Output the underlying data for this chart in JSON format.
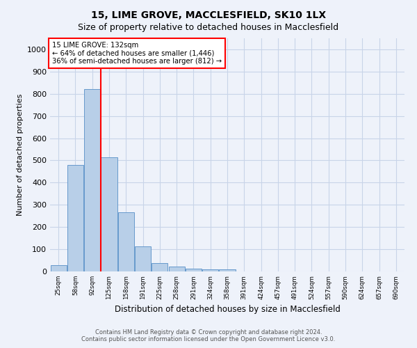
{
  "title1": "15, LIME GROVE, MACCLESFIELD, SK10 1LX",
  "title2": "Size of property relative to detached houses in Macclesfield",
  "xlabel": "Distribution of detached houses by size in Macclesfield",
  "ylabel": "Number of detached properties",
  "footnote1": "Contains HM Land Registry data © Crown copyright and database right 2024.",
  "footnote2": "Contains public sector information licensed under the Open Government Licence v3.0.",
  "annotation_line1": "15 LIME GROVE: 132sqm",
  "annotation_line2": "← 64% of detached houses are smaller (1,446)",
  "annotation_line3": "36% of semi-detached houses are larger (812) →",
  "bar_color": "#b8cfe8",
  "bar_edge_color": "#6699cc",
  "vline_color": "red",
  "annotation_box_color": "white",
  "annotation_box_edge": "red",
  "categories": [
    "25sqm",
    "58sqm",
    "92sqm",
    "125sqm",
    "158sqm",
    "191sqm",
    "225sqm",
    "258sqm",
    "291sqm",
    "324sqm",
    "358sqm",
    "391sqm",
    "424sqm",
    "457sqm",
    "491sqm",
    "524sqm",
    "557sqm",
    "590sqm",
    "624sqm",
    "657sqm",
    "690sqm"
  ],
  "values": [
    28,
    478,
    820,
    515,
    265,
    112,
    37,
    22,
    12,
    8,
    8,
    0,
    0,
    0,
    0,
    0,
    0,
    0,
    0,
    0,
    0
  ],
  "vline_after_bar": 2,
  "ylim": [
    0,
    1050
  ],
  "yticks": [
    0,
    100,
    200,
    300,
    400,
    500,
    600,
    700,
    800,
    900,
    1000
  ],
  "grid_color": "#c8d4e8",
  "bg_color": "#eef2fa",
  "title1_fontsize": 10,
  "title2_fontsize": 9
}
